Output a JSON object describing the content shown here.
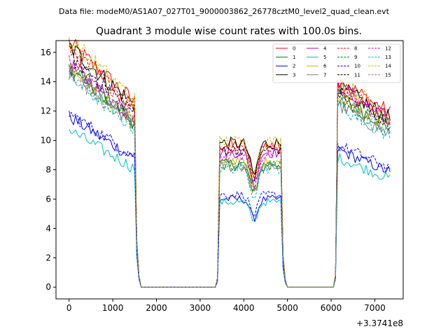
{
  "header_text": "Data file: modeM0/AS1A07_027T01_9000003862_26778cztM0_level2_quad_clean.evt",
  "chart_data": {
    "type": "line",
    "title": "Quadrant 3 module wise count rates with 100.0s bins.",
    "xlabel": "",
    "ylabel": "",
    "x_offset_label": "+3.3741e8",
    "xlim": [
      -300,
      7650
    ],
    "ylim": [
      -0.8,
      16.8
    ],
    "xticks": [
      0,
      1000,
      2000,
      3000,
      4000,
      5000,
      6000,
      7000
    ],
    "yticks": [
      0,
      2,
      4,
      6,
      8,
      10,
      12,
      14,
      16
    ],
    "grid": false,
    "legend_position": "top-right",
    "legend_columns": 4,
    "segments": [
      {
        "start": 0,
        "end": 1500
      },
      {
        "start": 3450,
        "end": 4850
      },
      {
        "start": 6150,
        "end": 7350
      }
    ],
    "gap_value": 0,
    "series": [
      {
        "name": "0",
        "color": "#ff0000",
        "dash": "solid",
        "levels": [
          14.6,
          9.7,
          13.0
        ]
      },
      {
        "name": "1",
        "color": "#008000",
        "dash": "solid",
        "levels": [
          13.2,
          8.4,
          12.0
        ]
      },
      {
        "name": "2",
        "color": "#0000ff",
        "dash": "solid",
        "levels": [
          10.2,
          6.0,
          8.6
        ]
      },
      {
        "name": "3",
        "color": "#000000",
        "dash": "solid",
        "levels": [
          14.4,
          9.8,
          12.6
        ]
      },
      {
        "name": "4",
        "color": "#bf00bf",
        "dash": "solid",
        "levels": [
          13.3,
          9.2,
          12.6
        ]
      },
      {
        "name": "5",
        "color": "#00bfbf",
        "dash": "solid",
        "levels": [
          9.4,
          5.8,
          8.1
        ]
      },
      {
        "name": "6",
        "color": "#bfbf00",
        "dash": "solid",
        "levels": [
          13.1,
          8.5,
          11.9
        ]
      },
      {
        "name": "7",
        "color": "#808080",
        "dash": "solid",
        "levels": [
          12.9,
          8.2,
          11.4
        ]
      },
      {
        "name": "8",
        "color": "#ff0000",
        "dash": "dashed",
        "levels": [
          14.3,
          9.5,
          12.7
        ]
      },
      {
        "name": "9",
        "color": "#008000",
        "dash": "dashed",
        "levels": [
          13.0,
          8.3,
          11.8
        ]
      },
      {
        "name": "10",
        "color": "#0000ff",
        "dash": "dashed",
        "levels": [
          10.4,
          6.3,
          8.9
        ]
      },
      {
        "name": "11",
        "color": "#000000",
        "dash": "dashed",
        "levels": [
          13.9,
          9.4,
          12.2
        ]
      },
      {
        "name": "12",
        "color": "#bf00bf",
        "dash": "dashed",
        "levels": [
          13.4,
          9.0,
          12.4
        ]
      },
      {
        "name": "13",
        "color": "#00bfbf",
        "dash": "dashed",
        "levels": [
          12.6,
          8.1,
          11.3
        ]
      },
      {
        "name": "14",
        "color": "#bfbf00",
        "dash": "dashed",
        "levels": [
          14.8,
          9.9,
          12.9
        ]
      },
      {
        "name": "15",
        "color": "#808080",
        "dash": "dashed",
        "levels": [
          12.8,
          8.3,
          11.6
        ]
      }
    ]
  }
}
